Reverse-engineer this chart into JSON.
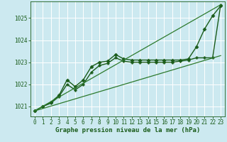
{
  "title": "Graphe pression niveau de la mer (hPa)",
  "background_color": "#cce9f0",
  "grid_color": "#ffffff",
  "line_color_main": "#1a5c1a",
  "xlim": [
    -0.5,
    23.5
  ],
  "ylim": [
    1020.55,
    1025.75
  ],
  "yticks": [
    1021,
    1022,
    1023,
    1024,
    1025
  ],
  "xticks": [
    0,
    1,
    2,
    3,
    4,
    5,
    6,
    7,
    8,
    9,
    10,
    11,
    12,
    13,
    14,
    15,
    16,
    17,
    18,
    19,
    20,
    21,
    22,
    23
  ],
  "series": [
    {
      "x": [
        0,
        1,
        2,
        3,
        4,
        5,
        6,
        7,
        8,
        9,
        10,
        11,
        12,
        13,
        14,
        15,
        16,
        17,
        18,
        19,
        20,
        21,
        22,
        23
      ],
      "y": [
        1020.8,
        1021.0,
        1021.2,
        1021.5,
        1022.2,
        1021.9,
        1022.2,
        1022.8,
        1023.0,
        1023.05,
        1023.35,
        1023.15,
        1023.1,
        1023.1,
        1023.1,
        1023.1,
        1023.1,
        1023.1,
        1023.1,
        1023.15,
        1023.7,
        1024.5,
        1025.1,
        1025.55
      ],
      "color": "#1a5c1a",
      "marker": "D",
      "markersize": 2.5,
      "linewidth": 1.0
    },
    {
      "x": [
        0,
        1,
        2,
        3,
        4,
        5,
        6,
        7,
        8,
        9,
        10,
        11,
        12,
        13,
        14,
        15,
        16,
        17,
        18,
        19,
        20,
        21,
        22,
        23
      ],
      "y": [
        1020.8,
        1021.0,
        1021.15,
        1021.45,
        1022.0,
        1021.75,
        1022.0,
        1022.55,
        1022.85,
        1022.95,
        1023.2,
        1023.05,
        1023.0,
        1023.0,
        1023.0,
        1023.0,
        1023.0,
        1023.0,
        1023.05,
        1023.1,
        1023.2,
        1023.2,
        1023.2,
        1025.6
      ],
      "color": "#1a5c1a",
      "marker": "P",
      "markersize": 2.5,
      "linewidth": 1.0
    },
    {
      "x": [
        0,
        23
      ],
      "y": [
        1020.8,
        1025.6
      ],
      "color": "#2d7a2d",
      "marker": null,
      "linewidth": 0.9
    },
    {
      "x": [
        0,
        23
      ],
      "y": [
        1020.8,
        1023.3
      ],
      "color": "#2d7a2d",
      "marker": null,
      "linewidth": 0.9
    }
  ],
  "xlabel_fontsize": 6.5,
  "tick_fontsize": 5.5
}
